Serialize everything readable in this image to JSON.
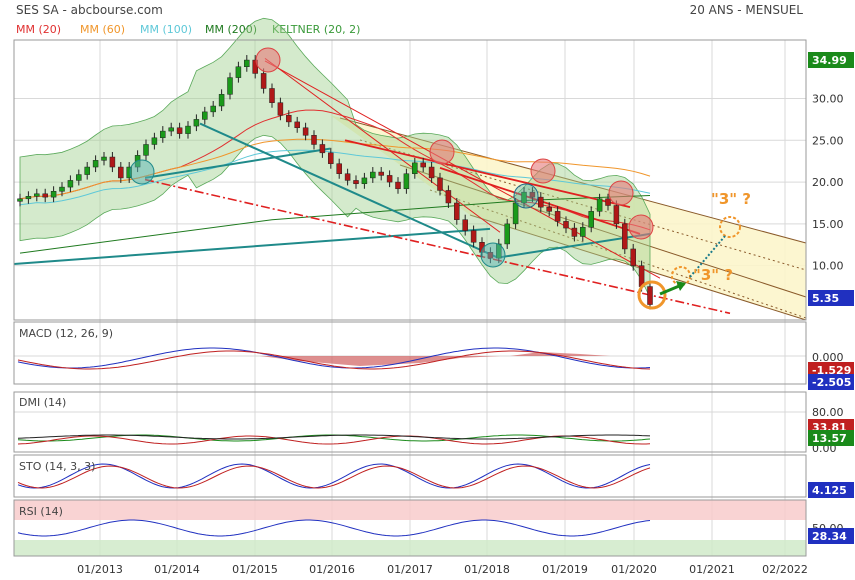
{
  "header": {
    "title": "SES SA - abcbourse.com",
    "period": "20 ANS - MENSUEL"
  },
  "legend": [
    {
      "label": "MM (20)",
      "color": "#e03030"
    },
    {
      "label": "MM (60)",
      "color": "#f0962b"
    },
    {
      "label": "MM (100)",
      "color": "#5ec8d8"
    },
    {
      "label": "MM (200)",
      "color": "#1f7a1f"
    },
    {
      "label": "KELTNER (20, 2)",
      "color": "#3a9a3a"
    }
  ],
  "annotations": {
    "target_label": "\"3\" ?"
  },
  "chart_data": [
    {
      "type": "candlestick",
      "panel": "price",
      "yticks": [
        10.0,
        15.0,
        20.0,
        25.0,
        30.0
      ],
      "ylim": [
        3.5,
        37.0
      ],
      "xticks": [
        "01/2013",
        "01/2014",
        "01/2015",
        "01/2016",
        "01/2017",
        "01/2018",
        "01/2019",
        "01/2020",
        "01/2021",
        "02/2022"
      ],
      "last_value": "5.35",
      "marker_value": "34.99",
      "close_approx": [
        18.0,
        18.3,
        18.6,
        18.2,
        18.9,
        19.4,
        20.2,
        20.9,
        21.8,
        22.6,
        23.0,
        21.8,
        20.5,
        21.8,
        23.2,
        24.5,
        25.3,
        26.1,
        26.5,
        25.8,
        26.7,
        27.5,
        28.4,
        29.1,
        30.5,
        32.5,
        33.8,
        34.6,
        33.0,
        31.2,
        29.5,
        28.0,
        27.2,
        26.5,
        25.6,
        24.5,
        23.5,
        22.2,
        21.0,
        20.2,
        19.8,
        20.5,
        21.2,
        20.8,
        20.0,
        19.2,
        21.0,
        22.3,
        21.8,
        20.5,
        19.0,
        17.5,
        15.5,
        14.2,
        12.8,
        11.6,
        10.9,
        12.6,
        15.0,
        17.5,
        18.8,
        18.2,
        17.0,
        16.5,
        15.3,
        14.5,
        13.5,
        14.6,
        16.5,
        18.0,
        17.2,
        15.0,
        12.0,
        10.0,
        7.5,
        5.35
      ]
    },
    {
      "type": "line",
      "panel": "MACD (12, 26, 9)",
      "yticks": [
        0.0
      ],
      "last_values": [
        "-1.529",
        "-2.505"
      ]
    },
    {
      "type": "line",
      "panel": "DMI (14)",
      "yticks": [
        80.0,
        0.0
      ],
      "last_values": [
        "33.81",
        "13.57"
      ]
    },
    {
      "type": "line",
      "panel": "STO (14, 3, 3)",
      "yticks": [],
      "last_values": [
        "4.125"
      ]
    },
    {
      "type": "line",
      "panel": "RSI (14)",
      "yticks": [
        50.0
      ],
      "last_values": [
        "28.34"
      ]
    }
  ]
}
